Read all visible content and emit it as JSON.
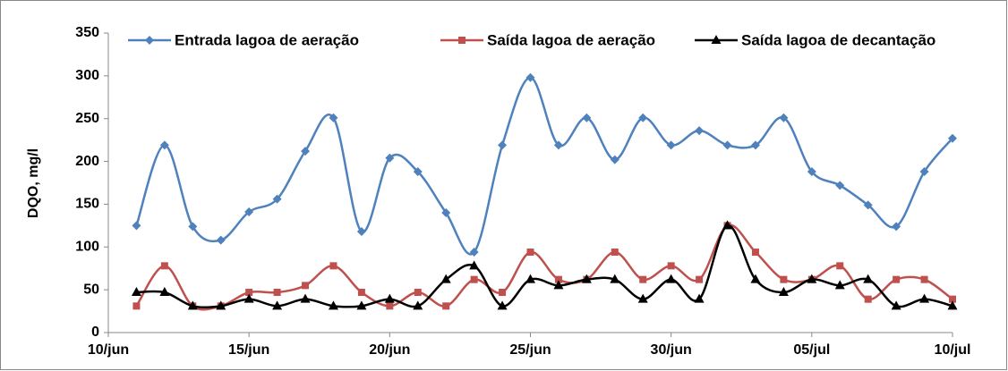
{
  "chart_data": {
    "type": "line",
    "y_label": "DQO, mg/l",
    "categories": [
      "10/jun",
      null,
      null,
      null,
      null,
      "15/jun",
      null,
      null,
      null,
      null,
      "20/jun",
      null,
      null,
      null,
      null,
      "25/jun",
      null,
      null,
      null,
      null,
      "30/jun",
      null,
      null,
      null,
      null,
      "05/jul",
      null,
      null,
      null,
      null,
      "10/jul"
    ],
    "series": [
      {
        "name": "Entrada lagoa de aeração",
        "color": "#4f81bd",
        "marker": "diamond",
        "values": [
          null,
          125,
          219,
          124,
          108,
          141,
          156,
          212,
          251,
          118,
          204,
          188,
          140,
          94,
          219,
          298,
          219,
          251,
          202,
          251,
          219,
          236,
          219,
          219,
          251,
          188,
          172,
          149,
          124,
          188,
          227
        ]
      },
      {
        "name": "Saída lagoa de aeração",
        "color": "#c0504d",
        "marker": "square",
        "values": [
          null,
          31,
          78,
          31,
          31,
          47,
          47,
          55,
          78,
          47,
          31,
          47,
          31,
          62,
          47,
          94,
          62,
          62,
          94,
          62,
          78,
          62,
          125,
          94,
          62,
          62,
          78,
          39,
          62,
          62,
          39
        ]
      },
      {
        "name": "Saída lagoa de decantação",
        "color": "#000000",
        "marker": "triangle",
        "values": [
          null,
          47,
          47,
          31,
          31,
          39,
          31,
          39,
          31,
          31,
          39,
          31,
          62,
          78,
          31,
          62,
          55,
          62,
          62,
          39,
          62,
          39,
          125,
          62,
          47,
          62,
          55,
          62,
          31,
          39,
          31
        ]
      }
    ],
    "ylim": [
      0,
      350
    ],
    "yticks": [
      0,
      50,
      100,
      150,
      200,
      250,
      300,
      350
    ],
    "grid": false,
    "legend": "top",
    "smooth": true
  }
}
